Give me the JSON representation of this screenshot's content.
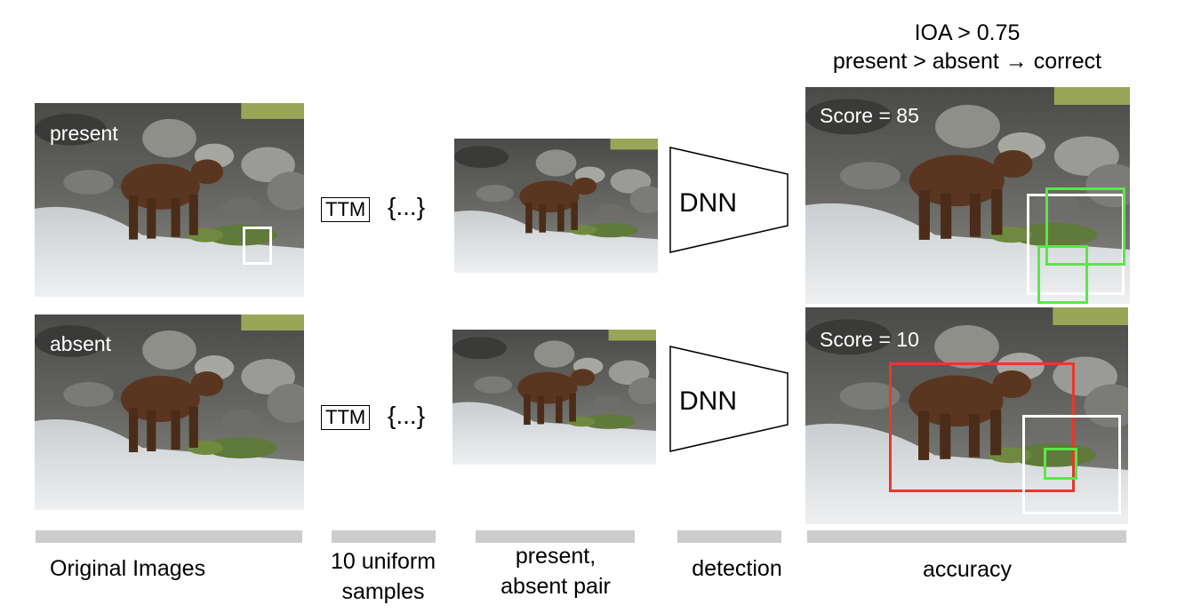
{
  "header": {
    "line1": "IOA > 0.75",
    "line2": "present > absent → correct"
  },
  "stages": {
    "original": "Original Images",
    "samples_line1": "10 uniform",
    "samples_line2": "samples",
    "pair_line1": "present,",
    "pair_line2": "absent pair",
    "detection": "detection",
    "accuracy": "accuracy"
  },
  "rows": [
    {
      "label": "present",
      "ttm": "TTM",
      "brace": "{...}",
      "dnn": "DNN",
      "score": "Score = 85"
    },
    {
      "label": "absent",
      "ttm": "TTM",
      "brace": "{...}",
      "dnn": "DNN",
      "score": "Score = 10"
    }
  ],
  "colors": {
    "green_box": "#5ce64a",
    "red_box": "#e53a2a",
    "white_box": "#ffffff",
    "bar": "#cccccc"
  }
}
